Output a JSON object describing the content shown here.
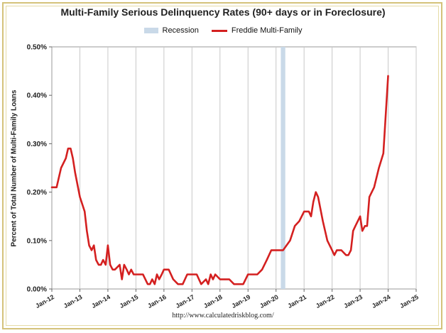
{
  "chart_data": {
    "type": "line",
    "title": "Multi-Family Serious Delinquency Rates (90+ days or in Foreclosure)",
    "ylabel": "Percent of Total Number of Multi-Family Loans",
    "xlabel": "",
    "ylim": [
      0,
      0.5
    ],
    "xlim": [
      2012,
      2025
    ],
    "y_ticks": [
      "0.00%",
      "0.10%",
      "0.20%",
      "0.30%",
      "0.40%",
      "0.50%"
    ],
    "y_tick_values": [
      0,
      0.1,
      0.2,
      0.3,
      0.4,
      0.5
    ],
    "x_ticks": [
      "Jan-12",
      "Jan-13",
      "Jan-14",
      "Jan-15",
      "Jan-16",
      "Jan-17",
      "Jan-18",
      "Jan-19",
      "Jan-20",
      "Jan-21",
      "Jan-22",
      "Jan-23",
      "Jan-24",
      "Jan-25"
    ],
    "x_tick_values": [
      2012,
      2013,
      2014,
      2015,
      2016,
      2017,
      2018,
      2019,
      2020,
      2021,
      2022,
      2023,
      2024,
      2025
    ],
    "legend": [
      "Recession",
      "Freddie Multi-Family"
    ],
    "legend_position": "top-center",
    "grid": "vertical",
    "recession": {
      "start": 2020.17,
      "end": 2020.33,
      "color": "#c9d9e8"
    },
    "series": [
      {
        "name": "Freddie Multi-Family",
        "color": "#d42020",
        "x": [
          2012.0,
          2012.17,
          2012.33,
          2012.5,
          2012.58,
          2012.67,
          2012.75,
          2012.83,
          2013.0,
          2013.17,
          2013.25,
          2013.33,
          2013.42,
          2013.5,
          2013.58,
          2013.67,
          2013.75,
          2013.83,
          2013.92,
          2014.0,
          2014.08,
          2014.17,
          2014.25,
          2014.42,
          2014.5,
          2014.58,
          2014.67,
          2014.75,
          2014.83,
          2014.92,
          2015.0,
          2015.08,
          2015.17,
          2015.25,
          2015.42,
          2015.5,
          2015.58,
          2015.67,
          2015.75,
          2015.83,
          2015.92,
          2016.0,
          2016.17,
          2016.33,
          2016.5,
          2016.67,
          2016.83,
          2017.0,
          2017.17,
          2017.33,
          2017.5,
          2017.58,
          2017.67,
          2017.75,
          2017.83,
          2018.0,
          2018.17,
          2018.33,
          2018.5,
          2018.67,
          2018.83,
          2019.0,
          2019.17,
          2019.33,
          2019.5,
          2019.67,
          2019.83,
          2020.0,
          2020.25,
          2020.5,
          2020.67,
          2020.83,
          2021.0,
          2021.17,
          2021.25,
          2021.33,
          2021.42,
          2021.5,
          2021.67,
          2021.83,
          2022.0,
          2022.08,
          2022.17,
          2022.33,
          2022.5,
          2022.58,
          2022.67,
          2022.75,
          2022.83,
          2023.0,
          2023.08,
          2023.17,
          2023.25,
          2023.33,
          2023.5,
          2023.67,
          2023.83,
          2024.0
        ],
        "values": [
          0.21,
          0.21,
          0.25,
          0.27,
          0.29,
          0.29,
          0.27,
          0.24,
          0.19,
          0.16,
          0.12,
          0.09,
          0.08,
          0.09,
          0.06,
          0.05,
          0.05,
          0.06,
          0.05,
          0.09,
          0.05,
          0.04,
          0.04,
          0.05,
          0.02,
          0.05,
          0.04,
          0.03,
          0.04,
          0.03,
          0.03,
          0.03,
          0.03,
          0.03,
          0.01,
          0.01,
          0.02,
          0.01,
          0.03,
          0.02,
          0.03,
          0.04,
          0.04,
          0.02,
          0.01,
          0.01,
          0.03,
          0.03,
          0.03,
          0.01,
          0.02,
          0.01,
          0.03,
          0.02,
          0.03,
          0.02,
          0.02,
          0.02,
          0.01,
          0.01,
          0.01,
          0.03,
          0.03,
          0.03,
          0.04,
          0.06,
          0.08,
          0.08,
          0.08,
          0.1,
          0.13,
          0.14,
          0.16,
          0.16,
          0.15,
          0.18,
          0.2,
          0.19,
          0.14,
          0.1,
          0.08,
          0.07,
          0.08,
          0.08,
          0.07,
          0.07,
          0.08,
          0.12,
          0.13,
          0.15,
          0.12,
          0.13,
          0.13,
          0.19,
          0.21,
          0.25,
          0.28,
          0.44
        ]
      }
    ]
  },
  "source_url": "http://www.calculatedriskblog.com/"
}
